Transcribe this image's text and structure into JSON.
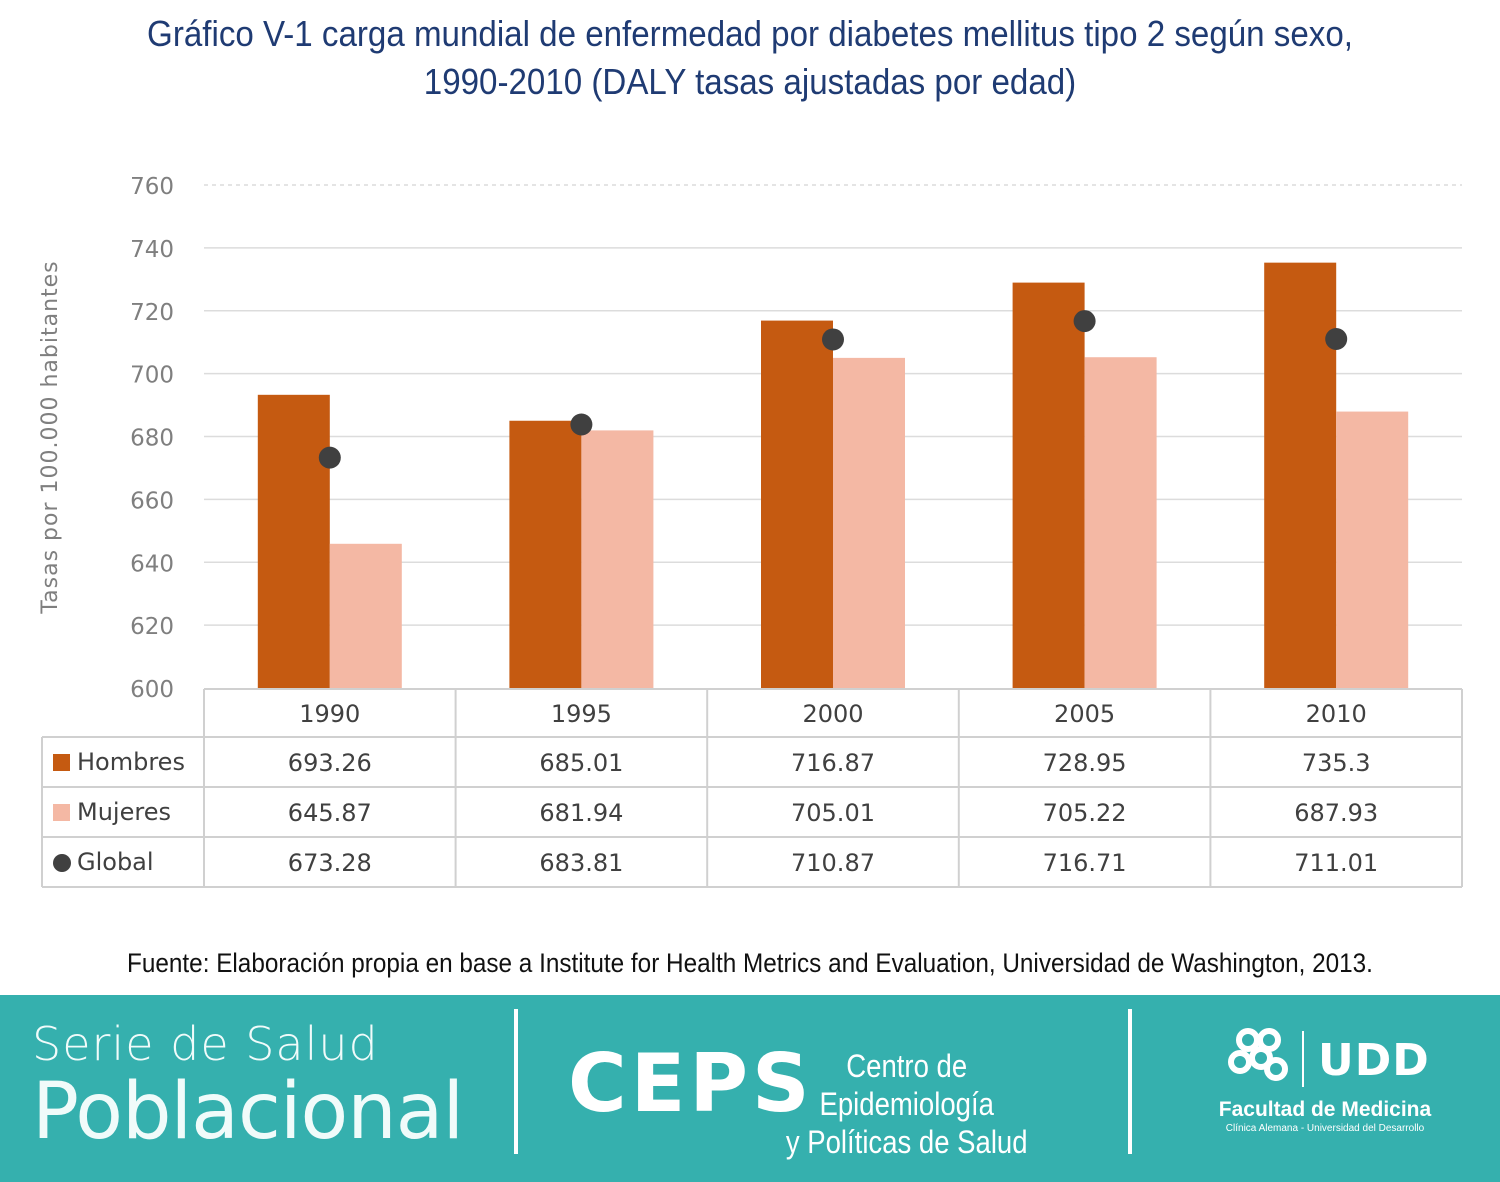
{
  "title": {
    "line1": "Gráfico V-1 carga mundial de enfermedad por diabetes mellitus tipo 2 según sexo,",
    "line2": "1990-2010 (DALY tasas ajustadas por edad)"
  },
  "chart_data": {
    "type": "bar",
    "categories": [
      "1990",
      "1995",
      "2000",
      "2005",
      "2010"
    ],
    "series": [
      {
        "name": "Hombres",
        "kind": "bar",
        "color": "#c55a11",
        "values": [
          693.26,
          685.01,
          716.87,
          728.95,
          735.3
        ],
        "labels": [
          "693.26",
          "685.01",
          "716.87",
          "728.95",
          "735.3"
        ]
      },
      {
        "name": "Mujeres",
        "kind": "bar",
        "color": "#f4b8a4",
        "values": [
          645.87,
          681.94,
          705.01,
          705.22,
          687.93
        ],
        "labels": [
          "645.87",
          "681.94",
          "705.01",
          "705.22",
          "687.93"
        ]
      },
      {
        "name": "Global",
        "kind": "marker",
        "color": "#404040",
        "values": [
          673.28,
          683.81,
          710.87,
          716.71,
          711.01
        ],
        "labels": [
          "673.28",
          "683.81",
          "710.87",
          "716.71",
          "711.01"
        ]
      }
    ],
    "ylabel": "Tasas por 100.000 habitantes",
    "ylim": [
      600,
      760
    ],
    "yticks": [
      600,
      620,
      640,
      660,
      680,
      700,
      720,
      740,
      760
    ],
    "grid": true,
    "legend": "data-table-below"
  },
  "source": "Fuente: Elaboración propia en base a Institute for Health Metrics and Evaluation, Universidad de Washington, 2013.",
  "footer": {
    "serie": "Serie de Salud",
    "poblacional": "Poblacional",
    "ceps": "CEPS",
    "ceps_name_line1": "Centro de Epidemiología",
    "ceps_name_line2": "y Políticas de Salud",
    "udd": "UDD",
    "facultad": "Facultad de Medicina",
    "subtitle": "Clínica Alemana - Universidad del Desarrollo",
    "background_color": "#35b0ae"
  }
}
